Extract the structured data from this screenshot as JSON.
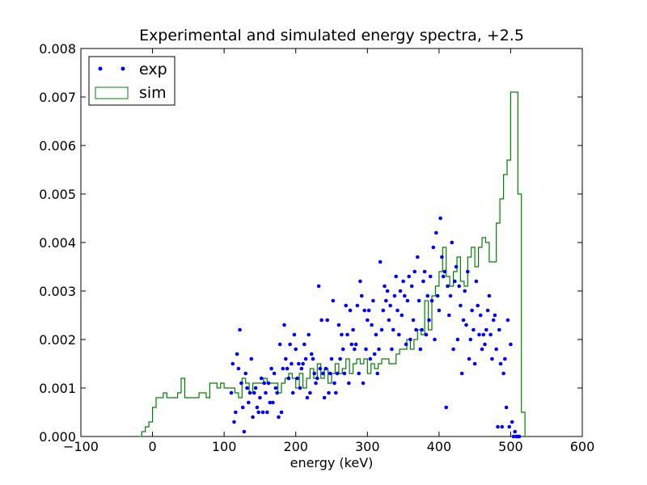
{
  "chart_data": {
    "type": "scatter",
    "title": "Experimental and simulated energy spectra, +2.5",
    "xlabel": "energy (keV)",
    "ylabel": "",
    "xlim": [
      -100,
      600
    ],
    "ylim": [
      0,
      0.008
    ],
    "xticks": [
      -100,
      0,
      100,
      200,
      300,
      400,
      500,
      600
    ],
    "xtick_labels": [
      "−100",
      "0",
      "100",
      "200",
      "300",
      "400",
      "500",
      "600"
    ],
    "yticks": [
      0,
      0.001,
      0.002,
      0.003,
      0.004,
      0.005,
      0.006,
      0.007,
      0.008
    ],
    "ytick_labels": [
      "0.000",
      "0.001",
      "0.002",
      "0.003",
      "0.004",
      "0.005",
      "0.006",
      "0.007",
      "0.008"
    ],
    "grid": false,
    "legend_position": "top-left",
    "colors": {
      "exp": "#0000ff",
      "sim": "#008000"
    },
    "series": [
      {
        "name": "exp",
        "type": "scatter",
        "x": [
          110,
          112,
          114,
          116,
          118,
          120,
          122,
          124,
          126,
          128,
          130,
          132,
          134,
          136,
          138,
          140,
          142,
          144,
          146,
          148,
          150,
          152,
          154,
          156,
          158,
          160,
          162,
          164,
          166,
          168,
          170,
          172,
          174,
          176,
          178,
          180,
          182,
          184,
          186,
          188,
          190,
          192,
          194,
          196,
          198,
          200,
          202,
          204,
          206,
          208,
          210,
          212,
          214,
          216,
          218,
          220,
          222,
          224,
          226,
          228,
          230,
          232,
          234,
          236,
          238,
          240,
          242,
          244,
          246,
          248,
          250,
          252,
          254,
          256,
          258,
          260,
          262,
          264,
          266,
          268,
          270,
          272,
          274,
          276,
          278,
          280,
          282,
          284,
          286,
          288,
          290,
          292,
          294,
          296,
          298,
          300,
          302,
          304,
          306,
          308,
          310,
          312,
          314,
          316,
          318,
          320,
          322,
          324,
          326,
          328,
          330,
          332,
          334,
          336,
          338,
          340,
          342,
          344,
          346,
          348,
          350,
          352,
          354,
          356,
          358,
          360,
          362,
          364,
          366,
          368,
          370,
          372,
          374,
          376,
          378,
          380,
          382,
          384,
          386,
          388,
          390,
          392,
          394,
          396,
          398,
          400,
          402,
          404,
          406,
          408,
          410,
          412,
          414,
          416,
          418,
          420,
          422,
          424,
          426,
          428,
          430,
          432,
          434,
          436,
          438,
          440,
          442,
          444,
          446,
          448,
          450,
          452,
          454,
          456,
          458,
          460,
          462,
          464,
          466,
          468,
          470,
          472,
          474,
          476,
          478,
          480,
          482,
          484,
          486,
          488,
          490,
          492,
          494,
          496,
          498,
          500,
          502,
          504,
          506,
          508,
          510,
          512
        ],
        "y": [
          0.0009,
          0.0015,
          0.0003,
          0.0005,
          0.0017,
          0.0014,
          0.0022,
          0.0011,
          0.0006,
          0.0001,
          0.0013,
          0.001,
          0.0007,
          0.0009,
          0.0016,
          0.0004,
          0.0009,
          0.001,
          0.0006,
          0.0005,
          0.0008,
          0.0012,
          0.0005,
          0.0011,
          0.0009,
          0.0005,
          0.0011,
          0.0007,
          0.0014,
          0.0007,
          0.0013,
          0.001,
          0.0009,
          0.0004,
          0.0019,
          0.0005,
          0.0014,
          0.0023,
          0.0016,
          0.0014,
          0.0012,
          0.0019,
          0.0015,
          0.0009,
          0.0021,
          0.0018,
          0.0012,
          0.0015,
          0.001,
          0.0014,
          0.0015,
          0.0019,
          0.0016,
          0.0008,
          0.0021,
          0.0009,
          0.0017,
          0.0016,
          0.0013,
          0.0011,
          0.0012,
          0.0031,
          0.0014,
          0.0024,
          0.0013,
          0.0008,
          0.0014,
          0.0024,
          0.0009,
          0.0013,
          0.0016,
          0.0028,
          0.0011,
          0.0009,
          0.0013,
          0.0023,
          0.0016,
          0.0021,
          0.0018,
          0.0013,
          0.0027,
          0.0021,
          0.0011,
          0.0026,
          0.0019,
          0.0022,
          0.0018,
          0.0019,
          0.0027,
          0.0013,
          0.0032,
          0.0029,
          0.0011,
          0.0026,
          0.0018,
          0.0024,
          0.0026,
          0.0016,
          0.0023,
          0.0028,
          0.0017,
          0.0021,
          0.0013,
          0.0018,
          0.0036,
          0.0022,
          0.0026,
          0.0031,
          0.0028,
          0.003,
          0.0024,
          0.0027,
          0.0018,
          0.0022,
          0.0029,
          0.0033,
          0.0026,
          0.0021,
          0.003,
          0.0025,
          0.0032,
          0.0029,
          0.0019,
          0.0028,
          0.0033,
          0.002,
          0.0031,
          0.0024,
          0.0034,
          0.0022,
          0.0037,
          0.0028,
          0.0018,
          0.0022,
          0.0032,
          0.0034,
          0.0021,
          0.0029,
          0.0024,
          0.0033,
          0.0028,
          0.0039,
          0.002,
          0.0042,
          0.0029,
          0.0026,
          0.0045,
          0.0037,
          0.0033,
          0.0034,
          0.0006,
          0.0031,
          0.0025,
          0.0029,
          0.004,
          0.0018,
          0.0032,
          0.0035,
          0.002,
          0.0031,
          0.0027,
          0.0013,
          0.0024,
          0.003,
          0.0023,
          0.0034,
          0.0016,
          0.002,
          0.0026,
          0.0022,
          0.0015,
          0.0032,
          0.0027,
          0.0021,
          0.0025,
          0.0018,
          0.0021,
          0.0019,
          0.0022,
          0.0026,
          0.0029,
          0.0021,
          0.0016,
          0.0024,
          0.0025,
          0.0018,
          0.0002,
          0.0022,
          0.0015,
          0.0002,
          0.0013,
          0.0016,
          0.0006,
          0.0024,
          0.0002,
          0.0019,
          0.0003,
          0.0,
          0.0001,
          0.0,
          0.0,
          0.0
        ]
      },
      {
        "name": "sim",
        "type": "step",
        "x": [
          -20,
          -15,
          -10,
          -5,
          0,
          5,
          10,
          15,
          20,
          25,
          30,
          35,
          40,
          45,
          50,
          55,
          60,
          65,
          70,
          75,
          80,
          85,
          90,
          95,
          100,
          105,
          110,
          115,
          120,
          125,
          130,
          135,
          140,
          145,
          150,
          155,
          160,
          165,
          170,
          175,
          180,
          185,
          190,
          195,
          200,
          205,
          210,
          215,
          220,
          225,
          230,
          235,
          240,
          245,
          250,
          255,
          260,
          265,
          270,
          275,
          280,
          285,
          290,
          295,
          300,
          305,
          310,
          315,
          320,
          325,
          330,
          335,
          340,
          345,
          350,
          355,
          360,
          365,
          370,
          375,
          380,
          385,
          390,
          395,
          400,
          405,
          410,
          415,
          420,
          425,
          430,
          435,
          440,
          445,
          450,
          455,
          460,
          465,
          470,
          475,
          480,
          485,
          490,
          495,
          500,
          505,
          510,
          515,
          520
        ],
        "y": [
          0.0,
          0.0001,
          0.0002,
          0.0003,
          0.0006,
          0.0008,
          0.0008,
          0.0009,
          0.0008,
          0.0008,
          0.0008,
          0.0009,
          0.0012,
          0.0008,
          0.0008,
          0.0008,
          0.0008,
          0.0009,
          0.0009,
          0.0008,
          0.0011,
          0.0011,
          0.001,
          0.0011,
          0.001,
          0.001,
          0.001,
          0.0009,
          0.0008,
          0.0012,
          0.0011,
          0.0009,
          0.0011,
          0.0011,
          0.0011,
          0.0012,
          0.0011,
          0.0011,
          0.0011,
          0.0009,
          0.0011,
          0.0012,
          0.0013,
          0.0012,
          0.001,
          0.0013,
          0.001,
          0.0012,
          0.0014,
          0.0012,
          0.0015,
          0.0012,
          0.0014,
          0.0011,
          0.0013,
          0.0015,
          0.0013,
          0.0014,
          0.0016,
          0.0013,
          0.0015,
          0.0016,
          0.0015,
          0.0016,
          0.0013,
          0.0015,
          0.0014,
          0.0015,
          0.0016,
          0.0016,
          0.0015,
          0.0015,
          0.0017,
          0.0018,
          0.0018,
          0.002,
          0.0018,
          0.002,
          0.0022,
          0.0021,
          0.0028,
          0.0022,
          0.0029,
          0.0031,
          0.0034,
          0.0039,
          0.0033,
          0.0031,
          0.0034,
          0.0037,
          0.0032,
          0.0031,
          0.0037,
          0.0039,
          0.0035,
          0.0039,
          0.0041,
          0.004,
          0.0036,
          0.0036,
          0.0044,
          0.0049,
          0.0054,
          0.0057,
          0.0071,
          0.0071,
          0.005,
          0.0005,
          0.0
        ]
      }
    ]
  }
}
